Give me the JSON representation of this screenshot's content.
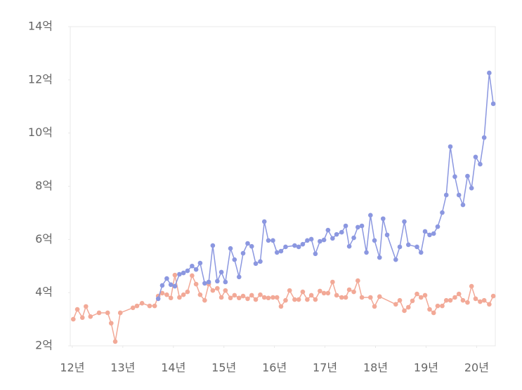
{
  "chart_data": {
    "type": "line",
    "xlim": [
      11.96,
      20.37
    ],
    "ylim": [
      2,
      14
    ],
    "xticks": [
      {
        "value": 12,
        "label": "12년"
      },
      {
        "value": 13,
        "label": "13년"
      },
      {
        "value": 14,
        "label": "14년"
      },
      {
        "value": 15,
        "label": "15년"
      },
      {
        "value": 16,
        "label": "16년"
      },
      {
        "value": 17,
        "label": "17년"
      },
      {
        "value": 18,
        "label": "18년"
      },
      {
        "value": 19,
        "label": "19년"
      },
      {
        "value": 20,
        "label": "20년"
      }
    ],
    "yticks": [
      {
        "value": 2,
        "label": "2억"
      },
      {
        "value": 4,
        "label": "4억"
      },
      {
        "value": 6,
        "label": "6억"
      },
      {
        "value": 8,
        "label": "8억"
      },
      {
        "value": 10,
        "label": "10억"
      },
      {
        "value": 12,
        "label": "12억"
      },
      {
        "value": 14,
        "label": "14억"
      }
    ],
    "series": [
      {
        "color": "#f2a997",
        "x": [
          12.02,
          12.1,
          12.2,
          12.27,
          12.36,
          12.53,
          12.7,
          12.77,
          12.85,
          12.95,
          13.2,
          13.28,
          13.38,
          13.53,
          13.63,
          13.7,
          13.78,
          13.87,
          13.95,
          14.03,
          14.12,
          14.2,
          14.28,
          14.37,
          14.45,
          14.53,
          14.62,
          14.7,
          14.78,
          14.87,
          14.95,
          15.03,
          15.13,
          15.21,
          15.3,
          15.38,
          15.47,
          15.55,
          15.63,
          15.72,
          15.8,
          15.88,
          15.97,
          16.05,
          16.13,
          16.22,
          16.3,
          16.4,
          16.48,
          16.56,
          16.65,
          16.73,
          16.81,
          16.9,
          16.98,
          17.06,
          17.15,
          17.23,
          17.33,
          17.41,
          17.48,
          17.57,
          17.65,
          17.73,
          17.9,
          17.98,
          18.08,
          18.4,
          18.48,
          18.57,
          18.65,
          18.73,
          18.82,
          18.9,
          18.98,
          19.07,
          19.15,
          19.23,
          19.32,
          19.4,
          19.48,
          19.57,
          19.65,
          19.73,
          19.82,
          19.9,
          19.98,
          20.07,
          20.15,
          20.25,
          20.33
        ],
        "values": [
          3.0,
          3.37,
          3.06,
          3.48,
          3.1,
          3.24,
          3.24,
          2.85,
          2.16,
          3.24,
          3.43,
          3.5,
          3.6,
          3.5,
          3.5,
          3.87,
          3.98,
          3.92,
          3.8,
          4.66,
          3.82,
          3.92,
          4.03,
          4.64,
          4.32,
          3.92,
          3.71,
          4.32,
          4.08,
          4.16,
          3.82,
          4.08,
          3.8,
          3.9,
          3.8,
          3.87,
          3.77,
          3.9,
          3.74,
          3.92,
          3.82,
          3.8,
          3.82,
          3.82,
          3.48,
          3.71,
          4.08,
          3.74,
          3.74,
          4.03,
          3.74,
          3.9,
          3.74,
          4.06,
          3.98,
          3.98,
          4.4,
          3.9,
          3.82,
          3.82,
          4.11,
          4.03,
          4.45,
          3.82,
          3.82,
          3.48,
          3.85,
          3.56,
          3.71,
          3.32,
          3.45,
          3.69,
          3.95,
          3.82,
          3.9,
          3.37,
          3.24,
          3.5,
          3.5,
          3.71,
          3.71,
          3.82,
          3.95,
          3.71,
          3.63,
          4.24,
          3.77,
          3.66,
          3.71,
          3.56,
          3.87
        ]
      },
      {
        "color": "#8b97e0",
        "x": [
          13.7,
          13.78,
          13.87,
          13.95,
          14.03,
          14.12,
          14.2,
          14.28,
          14.37,
          14.45,
          14.53,
          14.62,
          14.7,
          14.78,
          14.87,
          14.95,
          15.03,
          15.13,
          15.21,
          15.3,
          15.38,
          15.47,
          15.55,
          15.63,
          15.72,
          15.8,
          15.88,
          15.97,
          16.05,
          16.13,
          16.22,
          16.4,
          16.48,
          16.56,
          16.65,
          16.73,
          16.81,
          16.9,
          16.98,
          17.06,
          17.15,
          17.23,
          17.33,
          17.41,
          17.48,
          17.57,
          17.65,
          17.73,
          17.82,
          17.9,
          17.98,
          18.08,
          18.15,
          18.23,
          18.4,
          18.48,
          18.57,
          18.65,
          18.82,
          18.9,
          18.98,
          19.07,
          19.15,
          19.23,
          19.32,
          19.4,
          19.48,
          19.57,
          19.65,
          19.73,
          19.82,
          19.9,
          19.98,
          20.07,
          20.15,
          20.25,
          20.33
        ],
        "values": [
          3.77,
          4.27,
          4.53,
          4.3,
          4.24,
          4.69,
          4.74,
          4.82,
          5.0,
          4.87,
          5.11,
          4.35,
          4.4,
          5.77,
          4.43,
          4.77,
          4.4,
          5.66,
          5.24,
          4.59,
          5.48,
          5.85,
          5.74,
          5.09,
          5.17,
          6.67,
          5.96,
          5.96,
          5.51,
          5.56,
          5.72,
          5.77,
          5.72,
          5.82,
          5.96,
          6.01,
          5.46,
          5.93,
          5.98,
          6.35,
          6.04,
          6.19,
          6.27,
          6.51,
          5.74,
          6.06,
          6.46,
          6.51,
          5.51,
          6.91,
          5.96,
          5.32,
          6.78,
          6.17,
          5.24,
          5.72,
          6.67,
          5.8,
          5.72,
          5.51,
          6.3,
          6.17,
          6.22,
          6.48,
          7.01,
          7.67,
          9.49,
          8.36,
          7.67,
          7.3,
          8.38,
          7.93,
          9.1,
          8.83,
          9.83,
          12.26,
          11.1
        ]
      }
    ]
  }
}
